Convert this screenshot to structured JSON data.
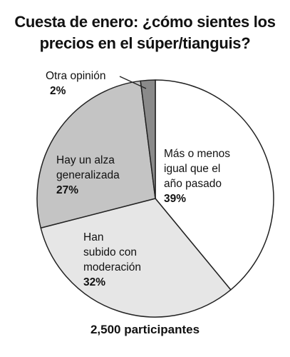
{
  "chart_data": {
    "type": "pie",
    "title_lines": [
      "Cuesta de enero: ¿cómo sientes los",
      "precios en el súper/tianguis?"
    ],
    "slices": [
      {
        "label_lines": [
          "Más o menos",
          "igual que el",
          "año pasado"
        ],
        "value": 39,
        "value_label": "39%",
        "color": "#ffffff"
      },
      {
        "label_lines": [
          "Han",
          "subido con",
          "moderación"
        ],
        "value": 32,
        "value_label": "32%",
        "color": "#e6e6e6"
      },
      {
        "label_lines": [
          "Hay un alza",
          "generalizada"
        ],
        "value": 27,
        "value_label": "27%",
        "color": "#c4c4c4"
      },
      {
        "label_lines": [
          "Otra opinión"
        ],
        "value": 2,
        "value_label": "2%",
        "color": "#8a8a8a"
      }
    ],
    "footnote": "2,500 participantes",
    "stroke_color": "#222222"
  }
}
